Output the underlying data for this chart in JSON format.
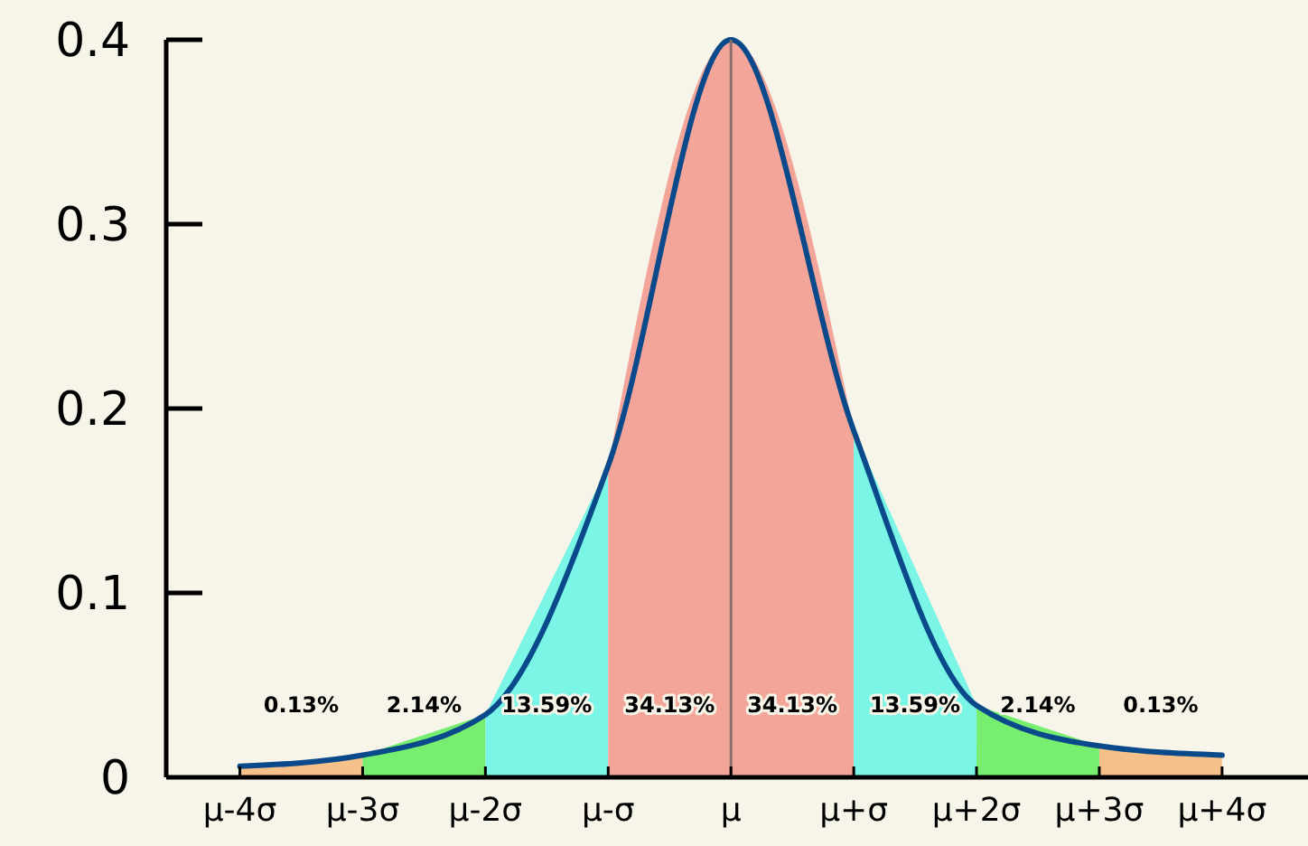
{
  "chart_data": {
    "type": "area",
    "categories": [
      "μ-4σ",
      "μ-3σ",
      "μ-2σ",
      "μ-σ",
      "μ",
      "μ+σ",
      "μ+2σ",
      "μ+3σ",
      "μ+4σ"
    ],
    "ylim": [
      0,
      0.4
    ],
    "yticks": [
      0,
      0.1,
      0.2,
      0.3,
      0.4
    ],
    "series": [
      {
        "color": "#f5c08a",
        "values": [
          0.006,
          0.012,
          null,
          null,
          null,
          null,
          null,
          null,
          null
        ]
      },
      {
        "color": "#77ee70",
        "values": [
          null,
          0.012,
          0.034,
          null,
          null,
          null,
          null,
          null,
          null
        ]
      },
      {
        "color": "#7af5e6",
        "values": [
          null,
          null,
          0.034,
          0.169,
          null,
          null,
          null,
          null,
          null
        ]
      },
      {
        "color": "#f4a59a",
        "values": [
          null,
          null,
          null,
          0.169,
          0.4,
          0.188,
          null,
          null,
          null
        ]
      },
      {
        "color": "#7af5e6",
        "values": [
          null,
          null,
          null,
          null,
          null,
          0.188,
          0.039,
          null,
          null
        ]
      },
      {
        "color": "#77ee70",
        "values": [
          null,
          null,
          null,
          null,
          null,
          null,
          0.039,
          0.017,
          null
        ]
      },
      {
        "color": "#f5c08a",
        "values": [
          null,
          null,
          null,
          null,
          null,
          null,
          null,
          0.017,
          0.012
        ]
      },
      {
        "type": "line",
        "color": "#0b4a8a",
        "values": [
          0.006,
          0.012,
          0.034,
          0.169,
          0.4,
          0.188,
          0.039,
          0.017,
          0.012
        ]
      }
    ],
    "ref_lines": [
      {
        "axis": "x",
        "value": "μ",
        "color": "#8a6e6a"
      }
    ],
    "annotations": [
      "0.13%",
      "2.14%",
      "13.59%",
      "34.13%",
      "34.13%",
      "13.59%",
      "2.14%",
      "0.13%"
    ]
  }
}
